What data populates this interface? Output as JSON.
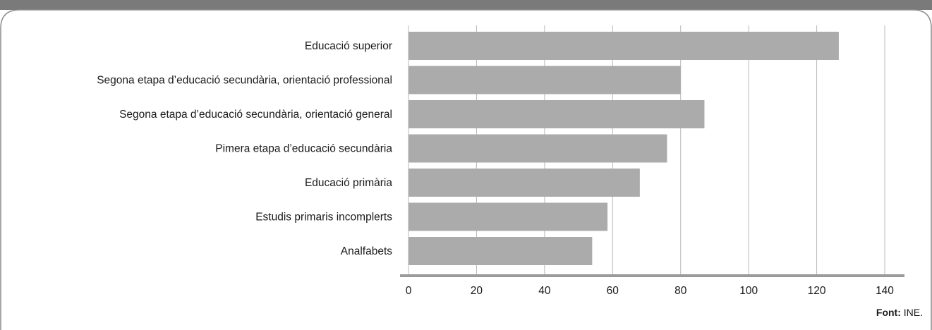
{
  "colors": {
    "header_band": "#7a7a7a",
    "frame_border": "#8c8c8c",
    "bar_fill": "#ababab",
    "grid_line": "#b8b8b8",
    "axis_line": "#9a9a9a"
  },
  "source": {
    "label": "Font:",
    "value": "INE."
  },
  "chart_data": {
    "type": "bar",
    "orientation": "horizontal",
    "categories": [
      "Educació superior",
      "Segona etapa d’educació secundària, orientació professional",
      "Segona etapa d’educació secundària, orientació general",
      "Pimera etapa d’educació secundària",
      "Educació primària",
      "Estudis primaris incomplerts",
      "Analfabets"
    ],
    "values": [
      126.5,
      80,
      87,
      76,
      68,
      58.5,
      54
    ],
    "xlim": [
      0,
      140
    ],
    "xticks": [
      0,
      20,
      40,
      60,
      80,
      100,
      120,
      140
    ],
    "grid": true,
    "title": "",
    "xlabel": "",
    "ylabel": ""
  }
}
